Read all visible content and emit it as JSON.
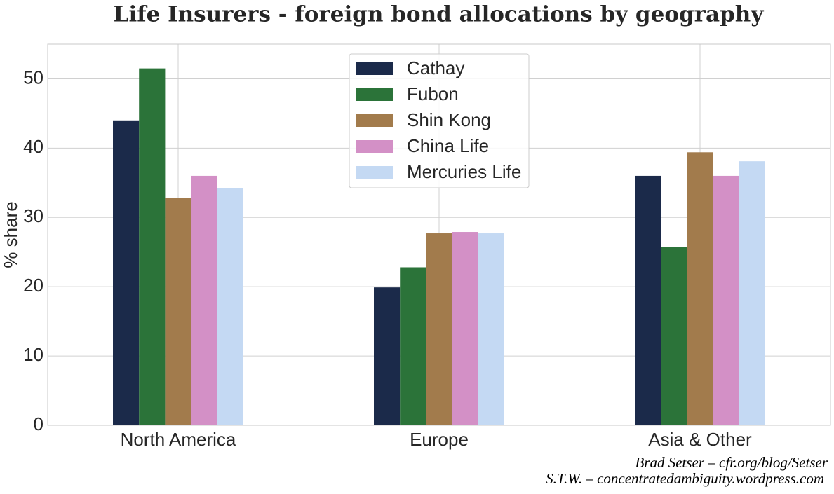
{
  "chart_data": {
    "type": "bar",
    "title": "Life Insurers - foreign bond allocations by geography",
    "y_label": "% share",
    "categories": [
      "North America",
      "Europe",
      "Asia & Other"
    ],
    "series": [
      {
        "name": "Cathay",
        "color": "#1b2a4a",
        "values": [
          44.0,
          19.9,
          36.0
        ]
      },
      {
        "name": "Fubon",
        "color": "#2b7339",
        "values": [
          51.5,
          22.8,
          25.7
        ]
      },
      {
        "name": "Shin Kong",
        "color": "#a27b4c",
        "values": [
          32.8,
          27.7,
          39.4
        ]
      },
      {
        "name": "China Life",
        "color": "#d390c6",
        "values": [
          36.0,
          27.9,
          36.0
        ]
      },
      {
        "name": "Mercuries Life",
        "color": "#c4d9f3",
        "values": [
          34.2,
          27.7,
          38.1
        ]
      }
    ],
    "ylim": [
      0,
      55
    ],
    "yticks": [
      0,
      10,
      20,
      30,
      40,
      50
    ],
    "grid": true,
    "legend": "upper center",
    "credits": [
      "Brad Setser – cfr.org/blog/Setser",
      "S.T.W. – concentratedambiguity.wordpress.com"
    ]
  }
}
